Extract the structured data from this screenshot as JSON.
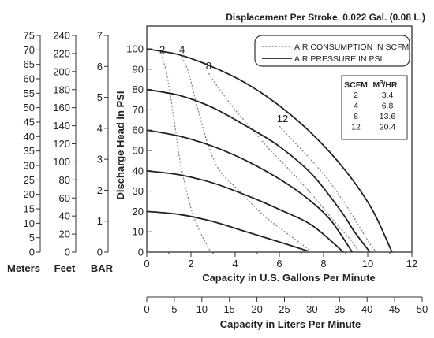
{
  "colors": {
    "ink": "#222222",
    "frame": "#333333",
    "dashed": "#8a8a8a"
  },
  "chart_data": {
    "type": "line",
    "title": "Displacement Per Stroke, 0.022 Gal. (0.08 L.)",
    "xlabel": "Capacity in U.S. Gallons Per Minute",
    "ylabel": "Discharge Head in PSI",
    "xlim": [
      0,
      12
    ],
    "ylim": [
      0,
      100
    ],
    "x_ticks": [
      "0",
      "2",
      "4",
      "6",
      "8",
      "10",
      "12"
    ],
    "y_ticks": [
      "0",
      "10",
      "20",
      "30",
      "40",
      "50",
      "60",
      "70",
      "80",
      "90",
      "100"
    ],
    "grid": false,
    "legend_position": "top-right",
    "legend": {
      "air_consumption_label": "AIR CONSUMPTION IN SCFM",
      "air_pressure_label": "AIR PRESSURE IN PSI"
    },
    "pressure_curves": [
      {
        "points": [
          [
            0,
            100
          ],
          [
            1.5,
            97
          ],
          [
            3,
            91
          ],
          [
            4.5,
            83
          ],
          [
            6,
            72
          ],
          [
            7.5,
            58
          ],
          [
            9,
            40
          ],
          [
            10.2,
            21
          ],
          [
            11.1,
            0
          ]
        ]
      },
      {
        "points": [
          [
            0,
            80
          ],
          [
            1.5,
            77
          ],
          [
            3,
            71
          ],
          [
            4.5,
            62
          ],
          [
            6,
            52
          ],
          [
            7.5,
            38
          ],
          [
            8.8,
            20
          ],
          [
            9.4,
            10
          ],
          [
            10.1,
            0
          ]
        ]
      },
      {
        "points": [
          [
            0,
            60
          ],
          [
            1.5,
            57
          ],
          [
            3,
            52
          ],
          [
            4.5,
            45
          ],
          [
            6,
            36
          ],
          [
            7.2,
            27
          ],
          [
            8.3,
            16
          ],
          [
            9.3,
            0
          ]
        ]
      },
      {
        "points": [
          [
            0,
            40
          ],
          [
            1.5,
            38
          ],
          [
            3,
            34
          ],
          [
            4.5,
            28
          ],
          [
            6,
            21
          ],
          [
            7.5,
            13
          ],
          [
            8.9,
            0
          ]
        ]
      },
      {
        "points": [
          [
            0,
            20
          ],
          [
            1.5,
            18.5
          ],
          [
            3,
            15
          ],
          [
            4.5,
            10
          ],
          [
            6,
            5
          ],
          [
            7.3,
            0.5
          ]
        ]
      }
    ],
    "air_consumption_curves": [
      {
        "label": "2",
        "points": [
          [
            0.7,
            96
          ],
          [
            0.9,
            88
          ],
          [
            1.1,
            75
          ],
          [
            1.3,
            60
          ],
          [
            1.5,
            45
          ],
          [
            1.8,
            30
          ],
          [
            2.1,
            18
          ],
          [
            2.5,
            8
          ],
          [
            2.9,
            0
          ]
        ]
      },
      {
        "label": "4",
        "points": [
          [
            1.6,
            96
          ],
          [
            1.9,
            88
          ],
          [
            2.2,
            75
          ],
          [
            2.5,
            63
          ],
          [
            2.8,
            52
          ],
          [
            3.3,
            40
          ],
          [
            4.2,
            30
          ],
          [
            5.3,
            18
          ],
          [
            6.5,
            8
          ],
          [
            7.5,
            0
          ]
        ]
      },
      {
        "label": "8",
        "points": [
          [
            2.8,
            88
          ],
          [
            3.3,
            80
          ],
          [
            4,
            70
          ],
          [
            4.8,
            60
          ],
          [
            5.6,
            50
          ],
          [
            6.5,
            40
          ],
          [
            7.5,
            28
          ],
          [
            8.5,
            15
          ],
          [
            9.3,
            5
          ],
          [
            9.6,
            0
          ]
        ]
      },
      {
        "label": "12",
        "points": [
          [
            6,
            62
          ],
          [
            6.6,
            55
          ],
          [
            7.3,
            47
          ],
          [
            8.1,
            37
          ],
          [
            8.9,
            25
          ],
          [
            9.6,
            13
          ],
          [
            10.1,
            4
          ],
          [
            10.4,
            0
          ]
        ]
      }
    ],
    "table": {
      "headers": {
        "scfm": "SCFM",
        "m3_base": "M",
        "m3_sup": "3",
        "m3_tail": "/HR"
      },
      "rows": [
        {
          "scfm": "2",
          "m3": "3.4"
        },
        {
          "scfm": "4",
          "m3": "6.8"
        },
        {
          "scfm": "8",
          "m3": "13.6"
        },
        {
          "scfm": "12",
          "m3": "20.4"
        }
      ]
    },
    "secondary_axes": {
      "meters": {
        "label": "Meters",
        "ticks": [
          "0",
          "5",
          "10",
          "15",
          "20",
          "25",
          "30",
          "35",
          "40",
          "45",
          "50",
          "55",
          "60",
          "65",
          "70",
          "75"
        ]
      },
      "feet": {
        "label": "Feet",
        "ticks": [
          "0",
          "20",
          "40",
          "60",
          "80",
          "100",
          "120",
          "140",
          "160",
          "180",
          "200",
          "220",
          "240"
        ]
      },
      "bar": {
        "label": "BAR",
        "ticks": [
          "0",
          "1",
          "2",
          "3",
          "4",
          "5",
          "6",
          "7"
        ]
      },
      "liters": {
        "label": "Capacity in Liters Per Minute",
        "ticks": [
          "0",
          "5",
          "10",
          "15",
          "20",
          "25",
          "30",
          "35",
          "40",
          "45",
          "50"
        ]
      }
    }
  }
}
